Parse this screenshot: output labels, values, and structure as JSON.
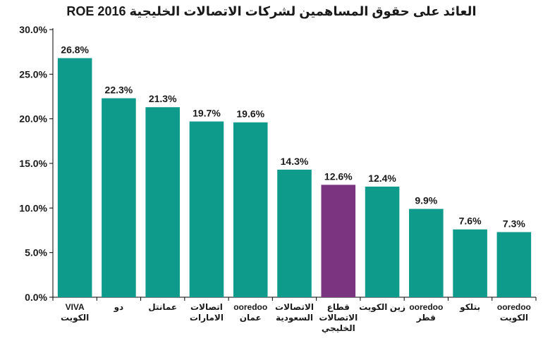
{
  "chart_data": {
    "type": "bar",
    "title": "العائد على حقوق المساهمين لشركات الاتصالات الخليجية ROE 2016",
    "xlabel": "",
    "ylabel": "",
    "ylim": [
      0,
      30
    ],
    "y_ticks": [
      "0.0%",
      "5.0%",
      "10.0%",
      "15.0%",
      "20.0%",
      "25.0%",
      "30.0%"
    ],
    "y_tick_values": [
      0,
      5,
      10,
      15,
      20,
      25,
      30
    ],
    "grid": false,
    "legend": "none",
    "categories": [
      [
        "VIVA",
        "الكويت"
      ],
      [
        "دو"
      ],
      [
        "عمانتل"
      ],
      [
        "اتصالات",
        "الامارات"
      ],
      [
        "ooredoo",
        "عمان"
      ],
      [
        "الاتصالات",
        "السعودية"
      ],
      [
        "قطاع",
        "الاتصالات",
        "الخليجي"
      ],
      [
        "زين الكويت"
      ],
      [
        "ooredoo",
        "قطر"
      ],
      [
        "بتلكو"
      ],
      [
        "ooredoo",
        "الكويت"
      ]
    ],
    "values": [
      26.8,
      22.3,
      21.3,
      19.7,
      19.6,
      14.3,
      12.6,
      12.4,
      9.9,
      7.6,
      7.3
    ],
    "value_labels": [
      "26.8%",
      "22.3%",
      "21.3%",
      "19.7%",
      "19.6%",
      "14.3%",
      "12.6%",
      "12.4%",
      "9.9%",
      "7.6%",
      "7.3%"
    ],
    "colors": {
      "default": "#0e9b8c",
      "highlight": "#7b3580",
      "highlight_index": 6
    }
  }
}
